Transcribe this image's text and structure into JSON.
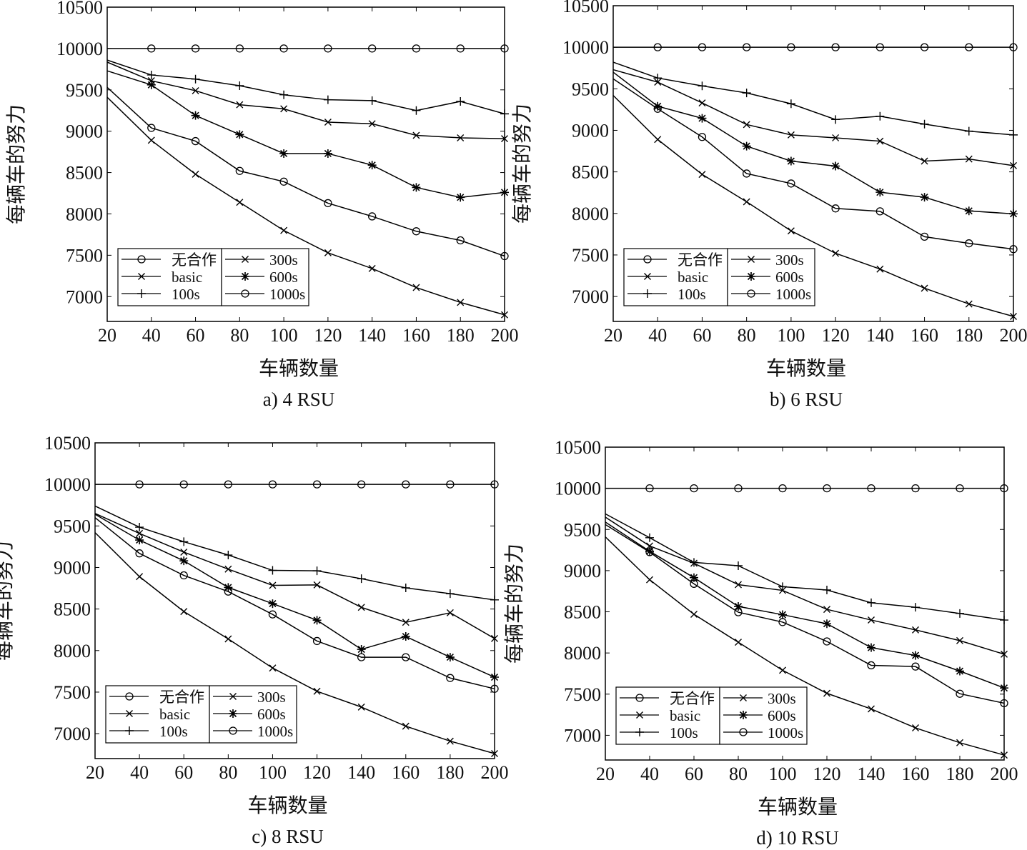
{
  "chart_data": [
    {
      "type": "line",
      "caption": "a) 4 RSU",
      "xlabel": "车辆数量",
      "ylabel": "每辆车的努力",
      "x": [
        20,
        40,
        60,
        80,
        100,
        120,
        140,
        160,
        180,
        200
      ],
      "xlim": [
        20,
        200
      ],
      "ylim": [
        6700,
        10500
      ],
      "yticks": [
        7000,
        7500,
        8000,
        8500,
        9000,
        9500,
        10000,
        10500
      ],
      "xticks": [
        20,
        40,
        60,
        80,
        100,
        120,
        140,
        160,
        180,
        200
      ],
      "grid": false,
      "legend_placement": "bottom-left",
      "series": [
        {
          "name": "无合作",
          "marker": "circle",
          "values": [
            10000,
            10000,
            10000,
            10000,
            10000,
            10000,
            10000,
            10000,
            10000,
            10000
          ]
        },
        {
          "name": "basic",
          "marker": "x",
          "values": [
            9835,
            9610,
            9490,
            9320,
            9270,
            9110,
            9090,
            8950,
            8920,
            8910
          ]
        },
        {
          "name": "100s",
          "marker": "plus",
          "values": [
            9860,
            9680,
            9630,
            9550,
            9440,
            9380,
            9370,
            9250,
            9360,
            9210
          ]
        },
        {
          "name": "300s",
          "marker": "x",
          "values": [
            9410,
            8890,
            8480,
            8140,
            7800,
            7530,
            7340,
            7110,
            6930,
            6780
          ]
        },
        {
          "name": "600s",
          "marker": "star",
          "values": [
            9730,
            9560,
            9190,
            8960,
            8730,
            8730,
            8590,
            8320,
            8200,
            8260
          ]
        },
        {
          "name": "1000s",
          "marker": "circle",
          "values": [
            9530,
            9040,
            8880,
            8520,
            8390,
            8130,
            7970,
            7790,
            7680,
            7490
          ]
        }
      ]
    },
    {
      "type": "line",
      "caption": "b) 6 RSU",
      "xlabel": "车辆数量",
      "ylabel": "每辆车的努力",
      "x": [
        20,
        40,
        60,
        80,
        100,
        120,
        140,
        160,
        180,
        200
      ],
      "xlim": [
        20,
        200
      ],
      "ylim": [
        6700,
        10500
      ],
      "yticks": [
        7000,
        7500,
        8000,
        8500,
        9000,
        9500,
        10000,
        10500
      ],
      "xticks": [
        20,
        40,
        60,
        80,
        100,
        120,
        140,
        160,
        180,
        200
      ],
      "grid": false,
      "legend_placement": "bottom-left",
      "series": [
        {
          "name": "无合作",
          "marker": "circle",
          "values": [
            10000,
            10000,
            10000,
            10000,
            10000,
            10000,
            10000,
            10000,
            10000,
            10000
          ]
        },
        {
          "name": "basic",
          "marker": "x",
          "values": [
            9730,
            9580,
            9330,
            9070,
            8945,
            8910,
            8870,
            8630,
            8655,
            8575
          ]
        },
        {
          "name": "100s",
          "marker": "plus",
          "values": [
            9820,
            9630,
            9535,
            9450,
            9320,
            9130,
            9170,
            9075,
            8990,
            8945
          ]
        },
        {
          "name": "300s",
          "marker": "x",
          "values": [
            9420,
            8890,
            8470,
            8140,
            7790,
            7520,
            7330,
            7100,
            6910,
            6760
          ]
        },
        {
          "name": "600s",
          "marker": "star",
          "values": [
            9700,
            9290,
            9145,
            8810,
            8630,
            8570,
            8255,
            8195,
            8030,
            7995
          ]
        },
        {
          "name": "1000s",
          "marker": "circle",
          "values": [
            9620,
            9260,
            8920,
            8480,
            8360,
            8060,
            8025,
            7720,
            7640,
            7570
          ]
        }
      ]
    },
    {
      "type": "line",
      "caption": "c) 8 RSU",
      "xlabel": "车辆数量",
      "ylabel": "每辆车的努力",
      "x": [
        20,
        40,
        60,
        80,
        100,
        120,
        140,
        160,
        180,
        200
      ],
      "xlim": [
        20,
        200
      ],
      "ylim": [
        6700,
        10500
      ],
      "yticks": [
        7000,
        7500,
        8000,
        8500,
        9000,
        9500,
        10000,
        10500
      ],
      "xticks": [
        20,
        40,
        60,
        80,
        100,
        120,
        140,
        160,
        180,
        200
      ],
      "grid": false,
      "legend_placement": "bottom-left",
      "series": [
        {
          "name": "无合作",
          "marker": "circle",
          "values": [
            10000,
            10000,
            10000,
            10000,
            10000,
            10000,
            10000,
            10000,
            10000,
            10000
          ]
        },
        {
          "name": "basic",
          "marker": "x",
          "values": [
            9650,
            9410,
            9185,
            8980,
            8785,
            8790,
            8520,
            8340,
            8455,
            8145
          ]
        },
        {
          "name": "100s",
          "marker": "plus",
          "values": [
            9740,
            9485,
            9310,
            9150,
            8965,
            8960,
            8865,
            8755,
            8685,
            8610
          ]
        },
        {
          "name": "300s",
          "marker": "x",
          "values": [
            9420,
            8890,
            8470,
            8140,
            7790,
            7510,
            7320,
            7090,
            6910,
            6760
          ]
        },
        {
          "name": "600s",
          "marker": "star",
          "values": [
            9640,
            9330,
            9080,
            8760,
            8565,
            8365,
            8015,
            8170,
            7920,
            7680
          ]
        },
        {
          "name": "1000s",
          "marker": "circle",
          "values": [
            9600,
            9170,
            8905,
            8710,
            8435,
            8115,
            7920,
            7920,
            7670,
            7540
          ]
        }
      ]
    },
    {
      "type": "line",
      "caption": "d) 10 RSU",
      "xlabel": "车辆数量",
      "ylabel": "每辆车的努力",
      "x": [
        20,
        40,
        60,
        80,
        100,
        120,
        140,
        160,
        180,
        200
      ],
      "xlim": [
        20,
        200
      ],
      "ylim": [
        6700,
        10500
      ],
      "yticks": [
        7000,
        7500,
        8000,
        8500,
        9000,
        9500,
        10000,
        10500
      ],
      "xticks": [
        20,
        40,
        60,
        80,
        100,
        120,
        140,
        160,
        180,
        200
      ],
      "grid": false,
      "legend_placement": "bottom-left",
      "series": [
        {
          "name": "无合作",
          "marker": "circle",
          "values": [
            10000,
            10000,
            10000,
            10000,
            10000,
            10000,
            10000,
            10000,
            10000,
            10000
          ]
        },
        {
          "name": "basic",
          "marker": "x",
          "values": [
            9650,
            9300,
            9090,
            8830,
            8760,
            8530,
            8400,
            8280,
            8150,
            7985
          ]
        },
        {
          "name": "100s",
          "marker": "plus",
          "values": [
            9690,
            9400,
            9100,
            9060,
            8805,
            8765,
            8610,
            8555,
            8480,
            8400
          ]
        },
        {
          "name": "300s",
          "marker": "x",
          "values": [
            9410,
            8890,
            8470,
            8130,
            7790,
            7510,
            7320,
            7090,
            6910,
            6760
          ]
        },
        {
          "name": "600s",
          "marker": "star",
          "values": [
            9590,
            9235,
            8915,
            8565,
            8465,
            8355,
            8065,
            7970,
            7780,
            7575
          ]
        },
        {
          "name": "1000s",
          "marker": "circle",
          "values": [
            9560,
            9225,
            8840,
            8495,
            8375,
            8140,
            7850,
            7835,
            7505,
            7390
          ]
        }
      ]
    }
  ]
}
